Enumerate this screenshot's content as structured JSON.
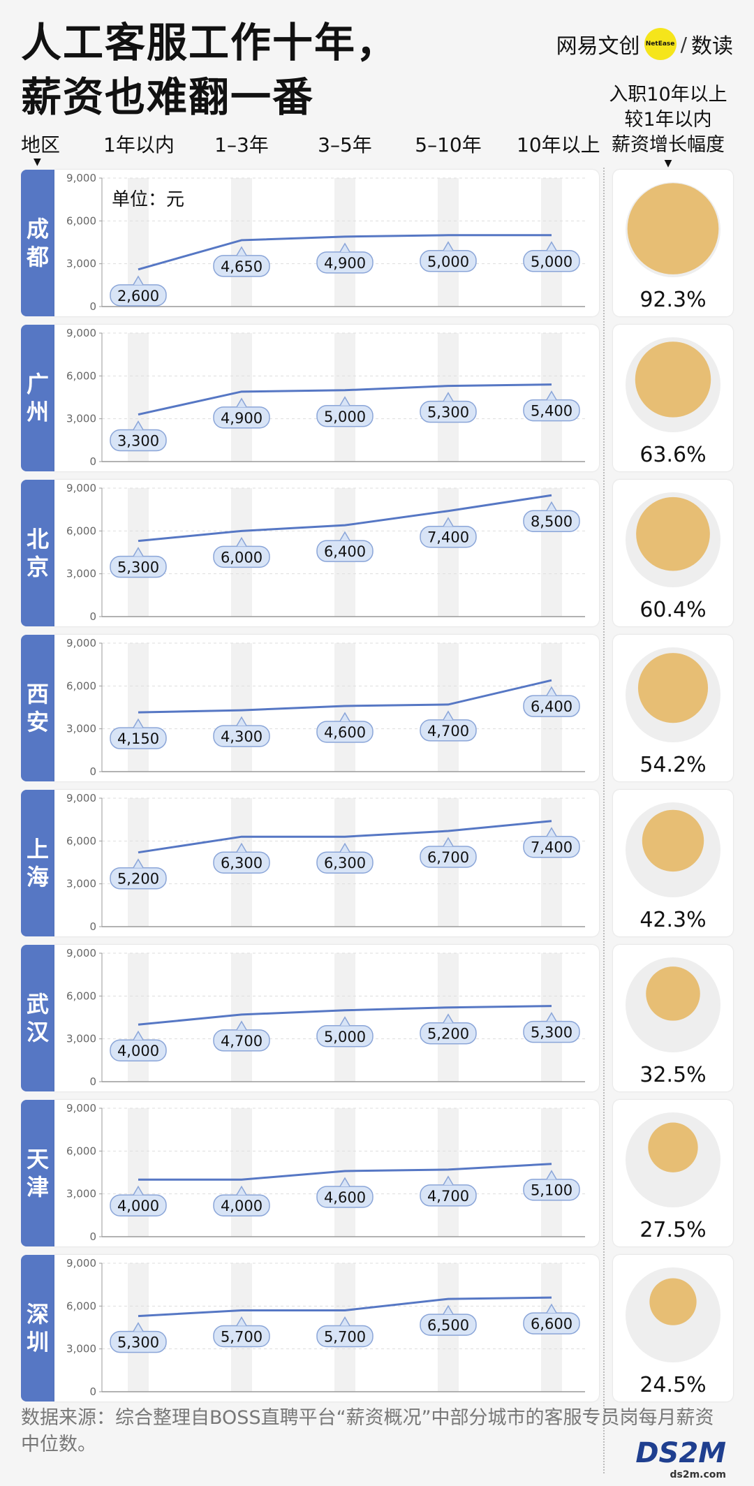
{
  "title_lines": [
    "人工客服工作十年，",
    "薪资也难翻一番"
  ],
  "brand": {
    "name": "网易文创",
    "dot_text": "NetEase",
    "sub": "数读"
  },
  "header": {
    "region_label": "地区",
    "columns": [
      "1年以内",
      "1–3年",
      "3–5年",
      "5–10年",
      "10年以上"
    ],
    "growth_label_lines": [
      "入职10年以上",
      "较1年以内",
      "薪资增长幅度"
    ]
  },
  "unit_label": "单位：元",
  "footer": {
    "source_text": "数据来源：综合整理自BOSS直聘平台“薪资概况”中部分城市的客服专员岗每月薪资中位数。"
  },
  "watermark": {
    "text": "DS2M",
    "sub": "ds2m.com"
  },
  "colors": {
    "city_bar": "#5677c4",
    "line": "#5677c4",
    "bubble": "#e7be74",
    "bubble_bg": "#eeeeee",
    "column_band": "#f1f1f1",
    "label_fill": "#d8e4f6",
    "label_stroke": "#8aa5d8"
  },
  "chart_data": {
    "type": "line",
    "categories": [
      "1年以内",
      "1–3年",
      "3–5年",
      "5–10年",
      "10年以上"
    ],
    "ylim": [
      0,
      9000
    ],
    "yticks": [
      "0",
      "3,000",
      "6,000",
      "9,000"
    ],
    "unit": "单位：元",
    "grid": true,
    "cities": [
      {
        "name": "成都",
        "chars": [
          "成",
          "都"
        ],
        "values": [
          2600,
          4650,
          4900,
          5000,
          5000
        ],
        "labels": [
          "2,600",
          "4,650",
          "4,900",
          "5,000",
          "5,000"
        ],
        "growth": 92.3,
        "growth_label": "92.3%"
      },
      {
        "name": "广州",
        "chars": [
          "广",
          "州"
        ],
        "values": [
          3300,
          4900,
          5000,
          5300,
          5400
        ],
        "labels": [
          "3,300",
          "4,900",
          "5,000",
          "5,300",
          "5,400"
        ],
        "growth": 63.6,
        "growth_label": "63.6%"
      },
      {
        "name": "北京",
        "chars": [
          "北",
          "京"
        ],
        "values": [
          5300,
          6000,
          6400,
          7400,
          8500
        ],
        "labels": [
          "5,300",
          "6,000",
          "6,400",
          "7,400",
          "8,500"
        ],
        "growth": 60.4,
        "growth_label": "60.4%"
      },
      {
        "name": "西安",
        "chars": [
          "西",
          "安"
        ],
        "values": [
          4150,
          4300,
          4600,
          4700,
          6400
        ],
        "labels": [
          "4,150",
          "4,300",
          "4,600",
          "4,700",
          "6,400"
        ],
        "growth": 54.2,
        "growth_label": "54.2%"
      },
      {
        "name": "上海",
        "chars": [
          "上",
          "海"
        ],
        "values": [
          5200,
          6300,
          6300,
          6700,
          7400
        ],
        "labels": [
          "5,200",
          "6,300",
          "6,300",
          "6,700",
          "7,400"
        ],
        "growth": 42.3,
        "growth_label": "42.3%"
      },
      {
        "name": "武汉",
        "chars": [
          "武",
          "汉"
        ],
        "values": [
          4000,
          4700,
          5000,
          5200,
          5300
        ],
        "labels": [
          "4,000",
          "4,700",
          "5,000",
          "5,200",
          "5,300"
        ],
        "growth": 32.5,
        "growth_label": "32.5%"
      },
      {
        "name": "天津",
        "chars": [
          "天",
          "津"
        ],
        "values": [
          4000,
          4000,
          4600,
          4700,
          5100
        ],
        "labels": [
          "4,000",
          "4,000",
          "4,600",
          "4,700",
          "5,100"
        ],
        "growth": 27.5,
        "growth_label": "27.5%"
      },
      {
        "name": "深圳",
        "chars": [
          "深",
          "圳"
        ],
        "values": [
          5300,
          5700,
          5700,
          6500,
          6600
        ],
        "labels": [
          "5,300",
          "5,700",
          "5,700",
          "6,500",
          "6,600"
        ],
        "growth": 24.5,
        "growth_label": "24.5%"
      }
    ]
  }
}
